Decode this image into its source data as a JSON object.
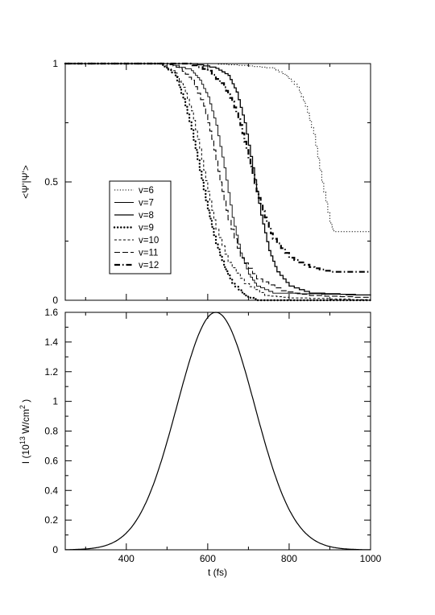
{
  "chart_data": [
    {
      "type": "line",
      "panel": "top",
      "ylabel": "<Ψ'|Ψ'>",
      "xlim": [
        250,
        1000
      ],
      "ylim": [
        0,
        1
      ],
      "yticks": [
        {
          "v": 0,
          "label": "0"
        },
        {
          "v": 0.5,
          "label": "0.5"
        },
        {
          "v": 1,
          "label": "1"
        }
      ],
      "xticks_shown": false,
      "legend_position": "middle-left",
      "series": [
        {
          "name": "v=6",
          "style": "dotted",
          "x": [
            250,
            600,
            700,
            760,
            790,
            820,
            840,
            860,
            880,
            900,
            910,
            1000
          ],
          "y": [
            1,
            1,
            0.99,
            0.98,
            0.95,
            0.9,
            0.82,
            0.7,
            0.5,
            0.33,
            0.29,
            0.29
          ]
        },
        {
          "name": "v=7",
          "style": "solid-thin",
          "x": [
            250,
            500,
            560,
            580,
            600,
            620,
            640,
            660,
            680,
            700,
            720,
            760,
            1000
          ],
          "y": [
            1,
            1,
            0.97,
            0.93,
            0.86,
            0.74,
            0.56,
            0.35,
            0.2,
            0.11,
            0.06,
            0.03,
            0.02
          ]
        },
        {
          "name": "v=8",
          "style": "solid",
          "x": [
            250,
            560,
            620,
            650,
            670,
            690,
            710,
            730,
            750,
            770,
            800,
            850,
            1000
          ],
          "y": [
            1,
            1,
            0.98,
            0.95,
            0.88,
            0.75,
            0.56,
            0.36,
            0.21,
            0.12,
            0.06,
            0.03,
            0.02
          ]
        },
        {
          "name": "v=9",
          "style": "dotted-bold",
          "x": [
            250,
            480,
            520,
            540,
            560,
            580,
            600,
            620,
            640,
            660,
            690,
            720,
            1000
          ],
          "y": [
            1,
            1,
            0.95,
            0.85,
            0.72,
            0.55,
            0.38,
            0.24,
            0.14,
            0.07,
            0.02,
            0.0,
            0.0
          ]
        },
        {
          "name": "v=10",
          "style": "dashed-fine",
          "x": [
            250,
            480,
            520,
            540,
            560,
            580,
            600,
            620,
            650,
            690,
            740,
            800,
            1000
          ],
          "y": [
            1,
            1,
            0.96,
            0.9,
            0.8,
            0.64,
            0.46,
            0.3,
            0.16,
            0.07,
            0.02,
            0.01,
            0.0
          ]
        },
        {
          "name": "v=11",
          "style": "dashed",
          "x": [
            250,
            500,
            530,
            560,
            590,
            610,
            630,
            650,
            680,
            720,
            780,
            850,
            1000
          ],
          "y": [
            1,
            1,
            0.98,
            0.93,
            0.82,
            0.68,
            0.5,
            0.34,
            0.18,
            0.09,
            0.04,
            0.02,
            0.01
          ]
        },
        {
          "name": "v=12",
          "style": "dashdot",
          "x": [
            250,
            550,
            600,
            640,
            660,
            680,
            700,
            720,
            740,
            760,
            800,
            850,
            900,
            1000
          ],
          "y": [
            1,
            1,
            0.97,
            0.9,
            0.84,
            0.74,
            0.6,
            0.46,
            0.35,
            0.26,
            0.18,
            0.14,
            0.12,
            0.12
          ]
        }
      ]
    },
    {
      "type": "line",
      "panel": "bottom",
      "xlabel": "t (fs)",
      "ylabel": "I (10 13 W/cm 2 )",
      "ylabel_parts": {
        "base": "I (10",
        "exp1": "13",
        "mid": " W/cm",
        "exp2": "2",
        "end": " )"
      },
      "xlim": [
        250,
        1000
      ],
      "ylim": [
        0,
        1.6
      ],
      "xticks": [
        {
          "v": 400,
          "label": "400"
        },
        {
          "v": 600,
          "label": "600"
        },
        {
          "v": 800,
          "label": "800"
        },
        {
          "v": 1000,
          "label": "1000"
        }
      ],
      "yticks": [
        {
          "v": 0,
          "label": "0"
        },
        {
          "v": 0.2,
          "label": "0.2"
        },
        {
          "v": 0.4,
          "label": "0.4"
        },
        {
          "v": 0.6,
          "label": "0.6"
        },
        {
          "v": 0.8,
          "label": "0.8"
        },
        {
          "v": 1,
          "label": "1"
        },
        {
          "v": 1.2,
          "label": "1.2"
        },
        {
          "v": 1.4,
          "label": "1.4"
        },
        {
          "v": 1.6,
          "label": "1.6"
        }
      ],
      "pulse": {
        "peak": 1.6,
        "center_fs": 620,
        "fwhm_fs": 225
      }
    }
  ]
}
